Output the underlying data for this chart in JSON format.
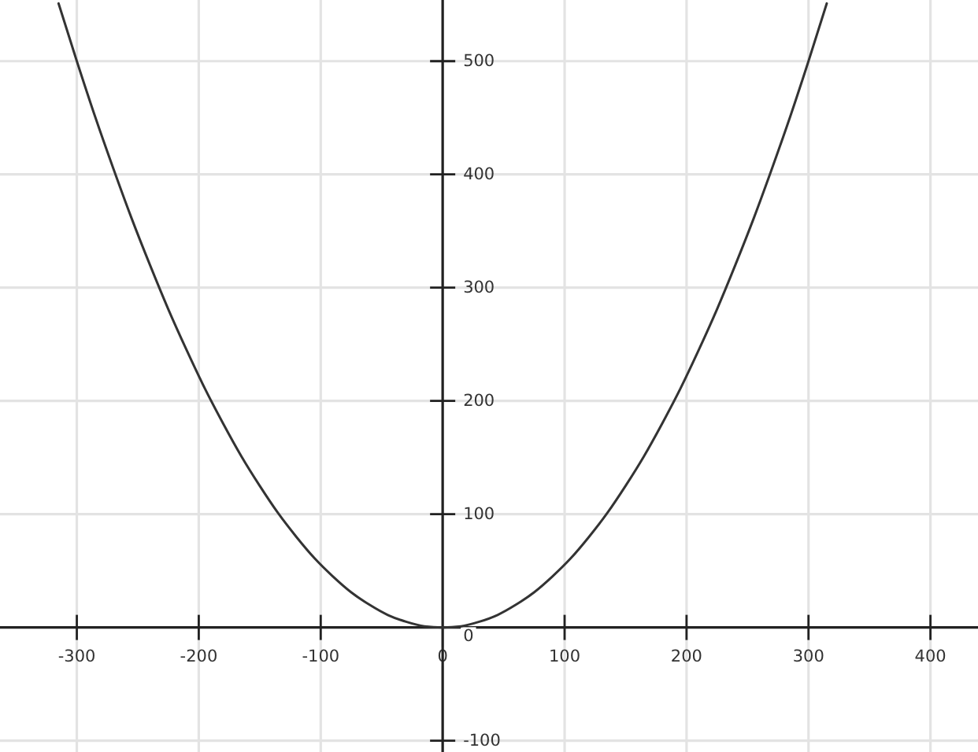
{
  "chart_data": {
    "type": "line",
    "x": [
      -315,
      -300,
      -285,
      -270,
      -255,
      -240,
      -225,
      -210,
      -195,
      -180,
      -165,
      -150,
      -135,
      -120,
      -105,
      -90,
      -75,
      -60,
      -45,
      -30,
      -15,
      0,
      15,
      30,
      45,
      60,
      75,
      90,
      105,
      120,
      135,
      150,
      165,
      180,
      195,
      210,
      225,
      240,
      255,
      270,
      285,
      300,
      315
    ],
    "values": [
      551,
      500,
      451,
      405,
      361,
      320,
      281,
      245,
      211,
      180,
      151,
      125,
      101,
      80,
      61,
      45,
      31,
      20,
      11,
      5,
      1,
      0,
      1,
      5,
      11,
      20,
      31,
      45,
      61,
      80,
      101,
      125,
      151,
      180,
      211,
      245,
      281,
      320,
      361,
      405,
      451,
      500,
      551
    ],
    "color": "#333333",
    "xlim": [
      -363,
      439
    ],
    "ylim": [
      -110,
      554
    ],
    "xticks": [
      -300,
      -200,
      -100,
      0,
      100,
      200,
      300,
      400
    ],
    "yticks": [
      -100,
      0,
      100,
      200,
      300,
      400,
      500
    ],
    "grid": true
  }
}
